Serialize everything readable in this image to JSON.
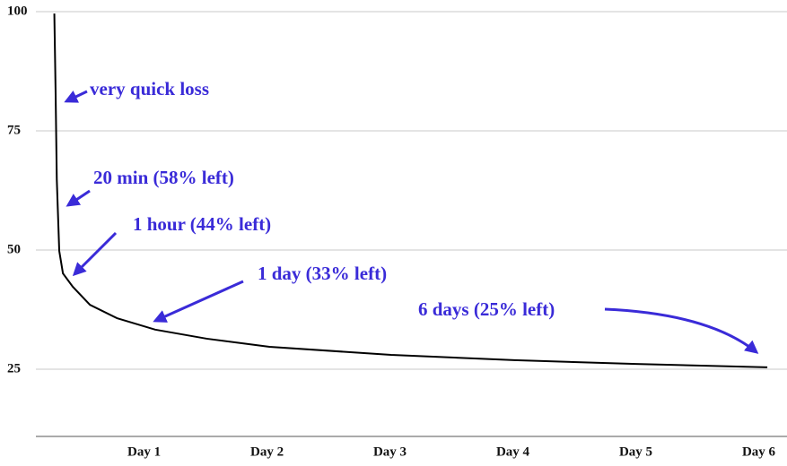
{
  "chart_data": {
    "type": "line",
    "x": [
      0.27,
      0.28,
      0.29,
      0.31,
      0.34,
      0.42,
      0.56,
      0.78,
      1.09,
      1.51,
      2.02,
      3.01,
      4.01,
      5.0,
      6.07
    ],
    "series": [
      {
        "color": "#000000",
        "values": [
          99.6,
          83.6,
          64.8,
          49.8,
          45.1,
          42.3,
          38.5,
          35.7,
          33.3,
          31.4,
          29.7,
          28.0,
          26.9,
          26.1,
          25.4
        ]
      }
    ],
    "xlim": [
      0.12,
      6.23
    ],
    "xticks": [
      {
        "value": 1,
        "label": "Day 1"
      },
      {
        "value": 2,
        "label": "Day 2"
      },
      {
        "value": 3,
        "label": "Day 3"
      },
      {
        "value": 4,
        "label": "Day 4"
      },
      {
        "value": 5,
        "label": "Day 5"
      },
      {
        "value": 6,
        "label": "Day 6"
      }
    ],
    "ylim": [
      10.9,
      100
    ],
    "yticks": [
      25,
      50,
      75,
      100
    ],
    "grid": true,
    "annotation_color": "#3a2bd8",
    "annotations": [
      "very quick loss",
      "20 min (58% left)",
      "1 hour (44% left)",
      "1 day (33% left)",
      "6 days (25% left)"
    ]
  }
}
